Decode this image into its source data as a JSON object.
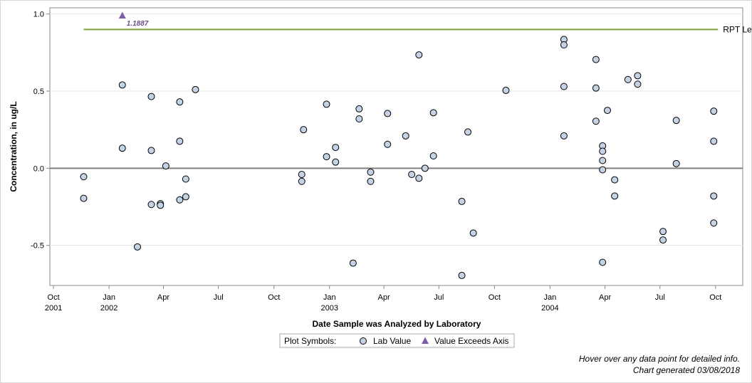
{
  "chart_data": {
    "type": "scatter",
    "title": "",
    "xlabel": "Date Sample was Analyzed by Laboratory",
    "ylabel": "Concentration, in ug/L",
    "xlim": [
      "2001-09-25",
      "2004-11-15"
    ],
    "ylim": [
      -0.76,
      1.04
    ],
    "grid": true,
    "y_ticks": [
      {
        "value": 1.0,
        "label": "1.0"
      },
      {
        "value": 0.5,
        "label": "0.5"
      },
      {
        "value": 0.0,
        "label": "0.0"
      },
      {
        "value": -0.5,
        "label": "-0.5"
      }
    ],
    "x_ticks": [
      {
        "date": "2001-10-01",
        "label": "Oct",
        "year": "2001"
      },
      {
        "date": "2002-01-01",
        "label": "Jan",
        "year": "2002"
      },
      {
        "date": "2002-04-01",
        "label": "Apr",
        "year": ""
      },
      {
        "date": "2002-07-01",
        "label": "Jul",
        "year": ""
      },
      {
        "date": "2002-10-01",
        "label": "Oct",
        "year": ""
      },
      {
        "date": "2003-01-01",
        "label": "Jan",
        "year": "2003"
      },
      {
        "date": "2003-04-01",
        "label": "Apr",
        "year": ""
      },
      {
        "date": "2003-07-01",
        "label": "Jul",
        "year": ""
      },
      {
        "date": "2003-10-01",
        "label": "Oct",
        "year": ""
      },
      {
        "date": "2004-01-01",
        "label": "Jan",
        "year": "2004"
      },
      {
        "date": "2004-04-01",
        "label": "Apr",
        "year": ""
      },
      {
        "date": "2004-07-01",
        "label": "Jul",
        "year": ""
      },
      {
        "date": "2004-10-01",
        "label": "Oct",
        "year": ""
      }
    ],
    "zero_line": 0.0,
    "rpt_level": {
      "value": 0.9,
      "label": "RPT Level",
      "start": "2001-11-20",
      "end": "2004-10-05",
      "color": "#7fa23a"
    },
    "series": [
      {
        "name": "Lab Value",
        "marker": "circle",
        "color": "#c4d2e6",
        "points": [
          {
            "x": "2001-11-20",
            "y": -0.055
          },
          {
            "x": "2001-11-20",
            "y": -0.195
          },
          {
            "x": "2002-01-23",
            "y": 0.54
          },
          {
            "x": "2002-01-23",
            "y": 0.13
          },
          {
            "x": "2002-02-17",
            "y": -0.51
          },
          {
            "x": "2002-03-12",
            "y": 0.465
          },
          {
            "x": "2002-03-12",
            "y": 0.115
          },
          {
            "x": "2002-03-12",
            "y": -0.235
          },
          {
            "x": "2002-03-27",
            "y": -0.23
          },
          {
            "x": "2002-03-27",
            "y": -0.24
          },
          {
            "x": "2002-04-05",
            "y": 0.015
          },
          {
            "x": "2002-04-28",
            "y": 0.43
          },
          {
            "x": "2002-04-28",
            "y": 0.175
          },
          {
            "x": "2002-04-28",
            "y": -0.205
          },
          {
            "x": "2002-05-08",
            "y": -0.07
          },
          {
            "x": "2002-05-08",
            "y": -0.185
          },
          {
            "x": "2002-05-24",
            "y": 0.51
          },
          {
            "x": "2002-11-16",
            "y": -0.04
          },
          {
            "x": "2002-11-16",
            "y": -0.085
          },
          {
            "x": "2002-11-19",
            "y": 0.25
          },
          {
            "x": "2002-12-27",
            "y": 0.415
          },
          {
            "x": "2002-12-27",
            "y": 0.075
          },
          {
            "x": "2003-01-11",
            "y": 0.135
          },
          {
            "x": "2003-01-11",
            "y": 0.04
          },
          {
            "x": "2003-02-09",
            "y": -0.615
          },
          {
            "x": "2003-02-19",
            "y": 0.385
          },
          {
            "x": "2003-02-19",
            "y": 0.32
          },
          {
            "x": "2003-03-10",
            "y": -0.025
          },
          {
            "x": "2003-03-10",
            "y": -0.085
          },
          {
            "x": "2003-04-07",
            "y": 0.355
          },
          {
            "x": "2003-04-07",
            "y": 0.155
          },
          {
            "x": "2003-05-07",
            "y": 0.21
          },
          {
            "x": "2003-05-17",
            "y": -0.04
          },
          {
            "x": "2003-05-29",
            "y": 0.735
          },
          {
            "x": "2003-05-29",
            "y": -0.065
          },
          {
            "x": "2003-06-08",
            "y": 0.0
          },
          {
            "x": "2003-06-22",
            "y": 0.36
          },
          {
            "x": "2003-06-22",
            "y": 0.08
          },
          {
            "x": "2003-08-08",
            "y": -0.215
          },
          {
            "x": "2003-08-08",
            "y": -0.695
          },
          {
            "x": "2003-08-18",
            "y": 0.235
          },
          {
            "x": "2003-08-27",
            "y": -0.42
          },
          {
            "x": "2003-10-20",
            "y": 0.505
          },
          {
            "x": "2004-01-24",
            "y": 0.835
          },
          {
            "x": "2004-01-24",
            "y": 0.8
          },
          {
            "x": "2004-01-24",
            "y": 0.53
          },
          {
            "x": "2004-01-24",
            "y": 0.21
          },
          {
            "x": "2004-03-17",
            "y": 0.705
          },
          {
            "x": "2004-03-17",
            "y": 0.52
          },
          {
            "x": "2004-03-17",
            "y": 0.305
          },
          {
            "x": "2004-03-28",
            "y": 0.145
          },
          {
            "x": "2004-03-28",
            "y": 0.11
          },
          {
            "x": "2004-03-28",
            "y": 0.05
          },
          {
            "x": "2004-03-28",
            "y": -0.01
          },
          {
            "x": "2004-03-28",
            "y": -0.61
          },
          {
            "x": "2004-04-05",
            "y": 0.375
          },
          {
            "x": "2004-04-17",
            "y": -0.075
          },
          {
            "x": "2004-04-17",
            "y": -0.18
          },
          {
            "x": "2004-05-09",
            "y": 0.575
          },
          {
            "x": "2004-05-25",
            "y": 0.6
          },
          {
            "x": "2004-05-25",
            "y": 0.545
          },
          {
            "x": "2004-07-06",
            "y": -0.41
          },
          {
            "x": "2004-07-06",
            "y": -0.465
          },
          {
            "x": "2004-07-28",
            "y": 0.31
          },
          {
            "x": "2004-07-28",
            "y": 0.03
          },
          {
            "x": "2004-09-28",
            "y": 0.37
          },
          {
            "x": "2004-09-28",
            "y": 0.175
          },
          {
            "x": "2004-09-28",
            "y": -0.18
          },
          {
            "x": "2004-09-28",
            "y": -0.355
          }
        ]
      },
      {
        "name": "Value Exceeds Axis",
        "marker": "triangle",
        "color": "#7b5ea7",
        "points": [
          {
            "x": "2002-01-23",
            "y": 1.1887,
            "label": "1.1887"
          }
        ]
      }
    ]
  },
  "legend": {
    "heading": "Plot Symbols:",
    "items": [
      {
        "label": "Lab Value"
      },
      {
        "label": "Value Exceeds Axis"
      }
    ]
  },
  "footer": {
    "line1": "Hover over any data point for detailed info.",
    "line2": "Chart generated 03/08/2018"
  },
  "colors": {
    "grid": "#e6e6e6",
    "zero_line": "#808080",
    "axis": "#888888"
  }
}
